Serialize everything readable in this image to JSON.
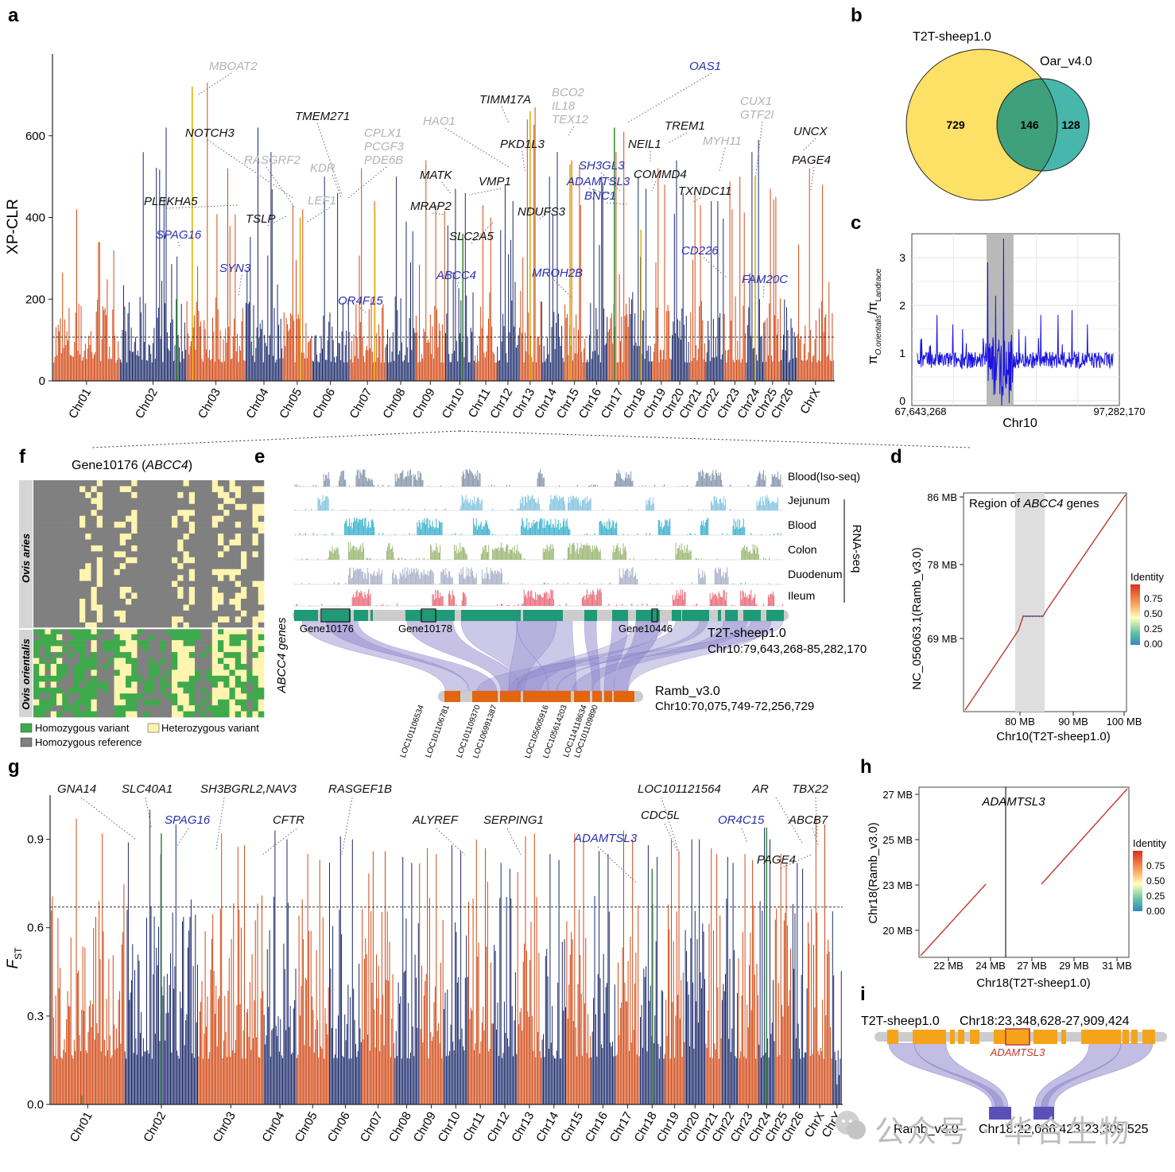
{
  "colors": {
    "orange": "#d24a16",
    "navy": "#1c2a6b",
    "gold": "#e3b100",
    "green": "#3f8e3c",
    "blue_label": "#2a2fb0",
    "grey_label": "#b3b3b3",
    "black": "#111111",
    "venn_yellow": "#fde066",
    "venn_teal": "#47b7ab",
    "venn_overlap": "#3fa07c",
    "track_green": "#1e9a76",
    "track_orange": "#e4650f",
    "ribbon": "#8f86cb",
    "heat_grey": "#808080",
    "heat_yellow": "#fff5b0",
    "heat_green": "#3faa4c"
  },
  "panel_letters": {
    "a": "a",
    "b": "b",
    "c": "c",
    "d": "d",
    "e": "e",
    "f": "f",
    "g": "g",
    "h": "h",
    "i": "i"
  },
  "chromosomes_a": [
    "Chr01",
    "Chr02",
    "Chr03",
    "Chr04",
    "Chr05",
    "Chr06",
    "Chr07",
    "Chr08",
    "Chr09",
    "Chr10",
    "Chr11",
    "Chr12",
    "Chr13",
    "Chr14",
    "Chr15",
    "Chr16",
    "Chr17",
    "Chr18",
    "Chr19",
    "Chr20",
    "Chr21",
    "Chr22",
    "Chr23",
    "Chr24",
    "Chr25",
    "Chr26",
    "ChrX"
  ],
  "chromosomes_g": [
    "Chr01",
    "Chr02",
    "Chr03",
    "Chr04",
    "Chr05",
    "Chr06",
    "Chr07",
    "Chr08",
    "Chr09",
    "Chr10",
    "Chr11",
    "Chr12",
    "Chr13",
    "Chr14",
    "Chr15",
    "Chr16",
    "Chr17",
    "Chr18",
    "Chr19",
    "Chr20",
    "Chr21",
    "Chr22",
    "Chr23",
    "Chr24",
    "Chr25",
    "Chr26",
    "ChrX",
    "ChrY"
  ],
  "chart_data": [
    {
      "id": "a",
      "type": "bar",
      "ylabel": "XP-CLR",
      "yticks": [
        "0",
        "200",
        "400",
        "600"
      ],
      "ylim": [
        0,
        800
      ],
      "threshold": 107,
      "chrom_peaks": [
        [
          420,
          340
        ],
        [
          560,
          620
        ],
        [
          730,
          520
        ],
        [
          620,
          560
        ],
        [
          430,
          420
        ],
        [
          500,
          460
        ],
        [
          520,
          440
        ],
        [
          500,
          390
        ],
        [
          540,
          430
        ],
        [
          470,
          460
        ],
        [
          430,
          400
        ],
        [
          480,
          440
        ],
        [
          640,
          670
        ],
        [
          500,
          560
        ],
        [
          540,
          530
        ],
        [
          470,
          500
        ],
        [
          560,
          610
        ],
        [
          500,
          470
        ],
        [
          520,
          480
        ],
        [
          540,
          460
        ],
        [
          470,
          430
        ],
        [
          440,
          440
        ],
        [
          420,
          500
        ],
        [
          560,
          590
        ],
        [
          470,
          450
        ],
        [
          180,
          130
        ],
        [
          520,
          480
        ]
      ],
      "gene_labels": [
        {
          "text": "MBOAT2",
          "color": "grey"
        },
        {
          "text": "NOTCH3",
          "color": "black"
        },
        {
          "text": "TMEM271",
          "color": "black"
        },
        {
          "text": "RASGRF2",
          "color": "grey"
        },
        {
          "text": "KDR",
          "color": "grey"
        },
        {
          "text": "CPLX1\nPCGF3\nPDE6B",
          "color": "grey"
        },
        {
          "text": "HAO1",
          "color": "grey"
        },
        {
          "text": "TIMM17A",
          "color": "black"
        },
        {
          "text": "BCO2\nIL18\nTEX12",
          "color": "grey"
        },
        {
          "text": "OAS1",
          "color": "blue"
        },
        {
          "text": "CUX1\nGTF2I",
          "color": "grey"
        },
        {
          "text": "PLEKHA5",
          "color": "black"
        },
        {
          "text": "TSLP",
          "color": "black"
        },
        {
          "text": "LEF1",
          "color": "grey"
        },
        {
          "text": "SPAG16",
          "color": "blue"
        },
        {
          "text": "SYN3",
          "color": "blue"
        },
        {
          "text": "OR4F15",
          "color": "blue"
        },
        {
          "text": "MATK",
          "color": "black"
        },
        {
          "text": "VMP1",
          "color": "black"
        },
        {
          "text": "PKD1L3",
          "color": "black"
        },
        {
          "text": "MRAP2",
          "color": "black"
        },
        {
          "text": "SLC2A5",
          "color": "black"
        },
        {
          "text": "NDUFS3",
          "color": "black"
        },
        {
          "text": "ABCC4",
          "color": "blue"
        },
        {
          "text": "MROH2B",
          "color": "blue"
        },
        {
          "text": "SH3GL3",
          "color": "blue"
        },
        {
          "text": "ADAMTSL3",
          "color": "blue"
        },
        {
          "text": "BNC1",
          "color": "blue"
        },
        {
          "text": "NEIL1",
          "color": "black"
        },
        {
          "text": "TREM1",
          "color": "black"
        },
        {
          "text": "COMMD4",
          "color": "black"
        },
        {
          "text": "TXNDC11",
          "color": "black"
        },
        {
          "text": "MYH11",
          "color": "grey"
        },
        {
          "text": "CD226",
          "color": "blue"
        },
        {
          "text": "FAM20C",
          "color": "blue"
        },
        {
          "text": "UNCX",
          "color": "black"
        },
        {
          "text": "PAGE4",
          "color": "black"
        }
      ]
    },
    {
      "id": "b",
      "type": "venn",
      "sets": [
        {
          "name": "T2T-sheep1.0",
          "only": 729
        },
        {
          "name": "Oar_v4.0",
          "only": 128
        }
      ],
      "overlap": 146
    },
    {
      "id": "c",
      "type": "line",
      "ylabel": "πO.orientalis/πLandrace",
      "ylabel_main": "π",
      "ylabel_sub1": "O.orientalis",
      "ylabel_slash": "/π",
      "ylabel_sub2": "Landrace",
      "xlabel": "Chr10",
      "x_start_label": "67,643,268",
      "x_end_label": "97,282,170",
      "yticks": [
        "0",
        "1",
        "2",
        "3"
      ],
      "ylim": [
        -0.1,
        3.5
      ],
      "highlight": [
        0.36,
        0.49
      ],
      "spikes": [
        [
          0.1,
          1.8
        ],
        [
          0.18,
          1.6
        ],
        [
          0.23,
          1.5
        ],
        [
          0.36,
          2.9
        ],
        [
          0.4,
          2.2
        ],
        [
          0.44,
          3.4
        ],
        [
          0.43,
          -0.1
        ],
        [
          0.47,
          -0.05
        ],
        [
          0.63,
          1.8
        ],
        [
          0.72,
          1.8
        ],
        [
          0.79,
          1.9
        ],
        [
          0.52,
          1.5
        ],
        [
          0.87,
          1.6
        ]
      ]
    },
    {
      "id": "d",
      "type": "scatter",
      "title_prefix": "Region of ",
      "title_gene": "ABCC4",
      "title_suffix": " genes",
      "xlabel": "Chr10(T2T-sheep1.0)",
      "ylabel": "NC_056063.1(Ramb_v3.0)",
      "xticks": [
        "80 MB",
        "90 MB",
        "100 MB"
      ],
      "yticks": [
        "69 MB",
        "78 MB",
        "86 MB"
      ],
      "legend_title": "Identity",
      "legend_ticks": [
        "0.75",
        "0.50",
        "0.25",
        "0.00"
      ]
    },
    {
      "id": "e",
      "type": "area",
      "tracks": [
        {
          "name": "Blood(Iso-seq)",
          "color": "#8797ad"
        },
        {
          "name": "Jejunum",
          "color": "#85c5e2"
        },
        {
          "name": "Blood",
          "color": "#3db3cf"
        },
        {
          "name": "Colon",
          "color": "#9cb775"
        },
        {
          "name": "Duodenum",
          "color": "#aab2c8"
        },
        {
          "name": "Ileum",
          "color": "#ea6c7a"
        }
      ],
      "rna_seq_label": "RNA-seq",
      "genes_axis_label": "ABCC4 genes",
      "top_genes": [
        "Gene10176",
        "Gene10178",
        "Gene10446"
      ],
      "top_assembly": "T2T-sheep1.0",
      "top_coords": "Chr10:79,643,268-85,282,170",
      "bottom_assembly": "Ramb_v3.0",
      "bottom_coords": "Chr10:70,075,749-72,256,729",
      "bottom_genes": [
        "LOC101106534",
        "LOC101106781",
        "LOC101109370",
        "LOC106991387",
        "LOC105605916",
        "LOC105614203",
        "LOC114118634",
        "LOC101109890"
      ]
    },
    {
      "id": "f",
      "type": "heatmap",
      "title_prefix": "Gene10176 (",
      "title_gene": "ABCC4",
      "title_suffix": ")",
      "groups": [
        "Ovis aries",
        "Ovis orientalis"
      ],
      "legend": [
        "Homozygous variant",
        "Heterozygous variant",
        "Homozygous reference"
      ]
    },
    {
      "id": "g",
      "type": "bar",
      "ylabel_main": "F",
      "ylabel_sub": "ST",
      "yticks": [
        "0.0",
        "0.3",
        "0.6",
        "0.9"
      ],
      "ylim": [
        0,
        1.05
      ],
      "threshold": 0.67,
      "chrom_peaks": [
        [
          0.97,
          0.92
        ],
        [
          1.0,
          0.95
        ],
        [
          0.92,
          0.88
        ],
        [
          0.93,
          0.9
        ],
        [
          0.85,
          0.83
        ],
        [
          0.91,
          0.9
        ],
        [
          0.86,
          0.86
        ],
        [
          0.84,
          0.82
        ],
        [
          0.87,
          0.85
        ],
        [
          0.88,
          0.86
        ],
        [
          0.9,
          0.87
        ],
        [
          0.82,
          0.8
        ],
        [
          0.91,
          0.92
        ],
        [
          0.85,
          0.83
        ],
        [
          0.92,
          0.9
        ],
        [
          0.86,
          0.85
        ],
        [
          0.93,
          0.9
        ],
        [
          0.88,
          0.84
        ],
        [
          0.9,
          0.86
        ],
        [
          0.9,
          0.9
        ],
        [
          0.87,
          0.85
        ],
        [
          0.84,
          0.82
        ],
        [
          0.85,
          0.83
        ],
        [
          0.94,
          0.9
        ],
        [
          0.85,
          0.82
        ],
        [
          0.82,
          0.8
        ],
        [
          0.97,
          0.95
        ],
        [
          0.15,
          0.1
        ]
      ],
      "gene_labels": [
        {
          "text": "GNA14",
          "color": "black"
        },
        {
          "text": "SLC40A1",
          "color": "black"
        },
        {
          "text": "SH3BGRL2,NAV3",
          "color": "black"
        },
        {
          "text": "RASGEF1B",
          "color": "black"
        },
        {
          "text": "LOC101121564",
          "color": "black"
        },
        {
          "text": "AR",
          "color": "black"
        },
        {
          "text": "TBX22",
          "color": "black"
        },
        {
          "text": "SPAG16",
          "color": "blue"
        },
        {
          "text": "CFTR",
          "color": "black"
        },
        {
          "text": "ALYREF",
          "color": "black"
        },
        {
          "text": "SERPING1",
          "color": "black"
        },
        {
          "text": "CDC5L",
          "color": "black"
        },
        {
          "text": "OR4C15",
          "color": "blue"
        },
        {
          "text": "ABCB7",
          "color": "black"
        },
        {
          "text": "ADAMTSL3",
          "color": "blue"
        },
        {
          "text": "PAGE4",
          "color": "black"
        }
      ]
    },
    {
      "id": "h",
      "type": "scatter",
      "gene_label": "ADAMTSL3",
      "xlabel": "Chr18(T2T-sheep1.0)",
      "ylabel": "Chr18(Ramb_v3.0)",
      "xticks": [
        "22 MB",
        "24 MB",
        "27 MB",
        "29 MB",
        "31 MB"
      ],
      "yticks": [
        "20 MB",
        "23 MB",
        "25 MB",
        "27 MB"
      ],
      "legend_title": "Identity",
      "legend_ticks": [
        "0.75",
        "0.50",
        "0.25",
        "0.00"
      ]
    },
    {
      "id": "i",
      "type": "synteny",
      "top_assembly": "T2T-sheep1.0",
      "top_coords": "Chr18:23,348,628-27,909,424",
      "gene": "ADAMTSL3",
      "bottom_assembly": "Ramb_v3.0",
      "bottom_coords": "Chr18:22,086,423-23,309,525"
    }
  ],
  "watermark": "公众号 · 华合生物"
}
